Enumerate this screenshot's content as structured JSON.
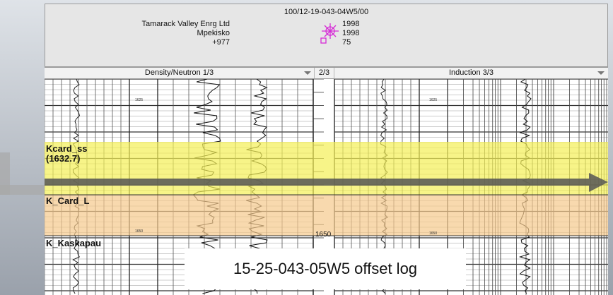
{
  "header": {
    "well_id": "100/12-19-043-04W5/00",
    "operator_lines": [
      "Tamarack Valley Enrg Ltd",
      "Mpekisko",
      "+977"
    ],
    "year_lines": [
      "1998",
      "1998",
      "75"
    ]
  },
  "tracks": {
    "track1_title": "Density/Neutron 1/3",
    "track2_title": "2/3",
    "track3_title": "Induction 3/3"
  },
  "depths": {
    "left_top": "1625",
    "left_bottom": "1650",
    "mid_bottom": "1650",
    "right_top": "1625",
    "right_bottom": "1650"
  },
  "formations": {
    "kcard_ss_line1": "Kcard_ss",
    "kcard_ss_line2": "(1632.7)",
    "k_card_l": "K_Card_L",
    "k_kaskapau": "K_Kaskapau"
  },
  "colors": {
    "yellow_band": "#f4ef55",
    "orange_band": "#f5c98c",
    "arrow": "#5a5a5a",
    "symbol": "#d62bd6"
  },
  "caption": "15-25-043-05W5 offset log"
}
